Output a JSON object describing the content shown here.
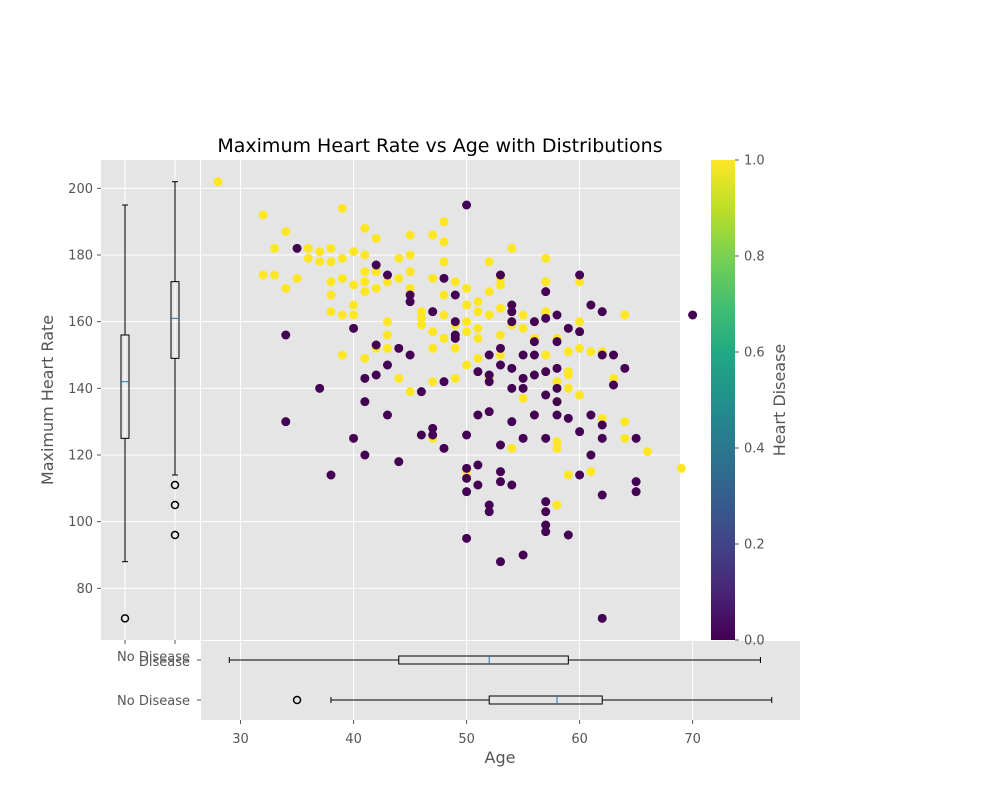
{
  "chart_data": [
    {
      "type": "scatter",
      "title": "Maximum Heart Rate vs Age with Distributions",
      "xlabel": "Age",
      "ylabel": "Maximum Heart Rate",
      "xlim": [
        26.5,
        79.5
      ],
      "ylim": [
        64.5,
        208.5
      ],
      "y_ticks": [
        80,
        100,
        120,
        140,
        160,
        180,
        200
      ],
      "grid": true,
      "colorbar": {
        "label": "Heart Disease",
        "colormap": "viridis",
        "range": [
          0.0,
          1.0
        ],
        "ticks": [
          "0.0",
          "0.2",
          "0.4",
          "0.6",
          "0.8",
          "1.0"
        ]
      },
      "series": [
        {
          "name": "",
          "heart_disease": 1,
          "color": "#fde725",
          "points": [
            [
              28,
              202
            ],
            [
              32,
              192
            ],
            [
              32,
              174
            ],
            [
              33,
              182
            ],
            [
              33,
              174
            ],
            [
              34,
              187
            ],
            [
              34,
              170
            ],
            [
              35,
              173
            ],
            [
              36,
              182
            ],
            [
              36,
              179
            ],
            [
              37,
              178
            ],
            [
              37,
              181
            ],
            [
              38,
              182
            ],
            [
              38,
              178
            ],
            [
              38,
              172
            ],
            [
              38,
              168
            ],
            [
              38,
              163
            ],
            [
              39,
              194
            ],
            [
              39,
              179
            ],
            [
              39,
              173
            ],
            [
              39,
              162
            ],
            [
              39,
              150
            ],
            [
              40,
              181
            ],
            [
              40,
              171
            ],
            [
              40,
              165
            ],
            [
              40,
              162
            ],
            [
              41,
              188
            ],
            [
              41,
              180
            ],
            [
              41,
              175
            ],
            [
              41,
              172
            ],
            [
              41,
              169
            ],
            [
              41,
              149
            ],
            [
              42,
              185
            ],
            [
              42,
              175
            ],
            [
              42,
              170
            ],
            [
              42,
              152
            ],
            [
              43,
              172
            ],
            [
              43,
              160
            ],
            [
              43,
              156
            ],
            [
              43,
              152
            ],
            [
              44,
              179
            ],
            [
              44,
              173
            ],
            [
              44,
              143
            ],
            [
              45,
              186
            ],
            [
              45,
              180
            ],
            [
              45,
              175
            ],
            [
              45,
              170
            ],
            [
              45,
              139
            ],
            [
              46,
              163
            ],
            [
              46,
              161
            ],
            [
              46,
              159
            ],
            [
              47,
              157
            ],
            [
              47,
              152
            ],
            [
              47,
              186
            ],
            [
              47,
              173
            ],
            [
              47,
              125
            ],
            [
              47,
              142
            ],
            [
              48,
              190
            ],
            [
              48,
              184
            ],
            [
              48,
              178
            ],
            [
              48,
              168
            ],
            [
              48,
              162
            ],
            [
              48,
              155
            ],
            [
              49,
              159
            ],
            [
              49,
              152
            ],
            [
              49,
              172
            ],
            [
              49,
              143
            ],
            [
              50,
              170
            ],
            [
              50,
              165
            ],
            [
              50,
              160
            ],
            [
              50,
              157
            ],
            [
              50,
              147
            ],
            [
              50,
              115
            ],
            [
              51,
              166
            ],
            [
              51,
              163
            ],
            [
              51,
              158
            ],
            [
              51,
              155
            ],
            [
              51,
              149
            ],
            [
              51,
              145
            ],
            [
              52,
              169
            ],
            [
              52,
              162
            ],
            [
              52,
              178
            ],
            [
              52,
              143
            ],
            [
              53,
              171
            ],
            [
              53,
              173
            ],
            [
              53,
              164
            ],
            [
              53,
              156
            ],
            [
              53,
              150
            ],
            [
              54,
              182
            ],
            [
              54,
              165
            ],
            [
              54,
              159
            ],
            [
              54,
              122
            ],
            [
              54,
              163
            ],
            [
              55,
              162
            ],
            [
              55,
              158
            ],
            [
              55,
              137
            ],
            [
              56,
              155
            ],
            [
              56,
              160
            ],
            [
              57,
              163
            ],
            [
              57,
              150
            ],
            [
              57,
              145
            ],
            [
              57,
              179
            ],
            [
              57,
              172
            ],
            [
              58,
              105
            ],
            [
              58,
              124
            ],
            [
              58,
              155
            ],
            [
              58,
              122
            ],
            [
              58,
              142
            ],
            [
              58,
              136
            ],
            [
              59,
              151
            ],
            [
              59,
              144
            ],
            [
              59,
              140
            ],
            [
              59,
              145
            ],
            [
              59,
              114
            ],
            [
              60,
              152
            ],
            [
              60,
              138
            ],
            [
              60,
              172
            ],
            [
              60,
              160
            ],
            [
              61,
              115
            ],
            [
              61,
              151
            ],
            [
              62,
              131
            ],
            [
              62,
              151
            ],
            [
              63,
              143
            ],
            [
              64,
              162
            ],
            [
              64,
              130
            ],
            [
              64,
              125
            ],
            [
              66,
              121
            ],
            [
              69,
              116
            ]
          ]
        },
        {
          "name": "",
          "heart_disease": 0,
          "color": "#440154",
          "points": [
            [
              34,
              156
            ],
            [
              34,
              130
            ],
            [
              35,
              182
            ],
            [
              37,
              140
            ],
            [
              38,
              114
            ],
            [
              40,
              158
            ],
            [
              40,
              125
            ],
            [
              41,
              143
            ],
            [
              41,
              136
            ],
            [
              41,
              120
            ],
            [
              42,
              177
            ],
            [
              42,
              153
            ],
            [
              42,
              144
            ],
            [
              43,
              174
            ],
            [
              43,
              132
            ],
            [
              43,
              147
            ],
            [
              44,
              152
            ],
            [
              44,
              118
            ],
            [
              45,
              168
            ],
            [
              45,
              166
            ],
            [
              45,
              150
            ],
            [
              46,
              139
            ],
            [
              46,
              126
            ],
            [
              47,
              163
            ],
            [
              47,
              128
            ],
            [
              47,
              126
            ],
            [
              48,
              173
            ],
            [
              48,
              142
            ],
            [
              48,
              122
            ],
            [
              49,
              168
            ],
            [
              49,
              160
            ],
            [
              49,
              156
            ],
            [
              49,
              155
            ],
            [
              50,
              195
            ],
            [
              50,
              126
            ],
            [
              50,
              116
            ],
            [
              50,
              113
            ],
            [
              50,
              109
            ],
            [
              50,
              95
            ],
            [
              51,
              145
            ],
            [
              51,
              132
            ],
            [
              51,
              117
            ],
            [
              51,
              111
            ],
            [
              52,
              150
            ],
            [
              52,
              144
            ],
            [
              52,
              142
            ],
            [
              52,
              133
            ],
            [
              52,
              105
            ],
            [
              52,
              103
            ],
            [
              53,
              174
            ],
            [
              53,
              152
            ],
            [
              53,
              147
            ],
            [
              53,
              123
            ],
            [
              53,
              115
            ],
            [
              53,
              112
            ],
            [
              53,
              88
            ],
            [
              54,
              165
            ],
            [
              54,
              163
            ],
            [
              54,
              160
            ],
            [
              54,
              146
            ],
            [
              54,
              140
            ],
            [
              54,
              130
            ],
            [
              54,
              111
            ],
            [
              55,
              150
            ],
            [
              55,
              143
            ],
            [
              55,
              140
            ],
            [
              55,
              125
            ],
            [
              55,
              90
            ],
            [
              56,
              160
            ],
            [
              56,
              154
            ],
            [
              56,
              150
            ],
            [
              56,
              144
            ],
            [
              56,
              132
            ],
            [
              57,
              169
            ],
            [
              57,
              161
            ],
            [
              57,
              145
            ],
            [
              57,
              138
            ],
            [
              57,
              125
            ],
            [
              57,
              106
            ],
            [
              57,
              99
            ],
            [
              57,
              97
            ],
            [
              57,
              103
            ],
            [
              58,
              162
            ],
            [
              58,
              154
            ],
            [
              58,
              146
            ],
            [
              58,
              140
            ],
            [
              58,
              136
            ],
            [
              58,
              132
            ],
            [
              59,
              158
            ],
            [
              59,
              131
            ],
            [
              59,
              96
            ],
            [
              60,
              174
            ],
            [
              60,
              157
            ],
            [
              60,
              127
            ],
            [
              60,
              114
            ],
            [
              61,
              165
            ],
            [
              61,
              132
            ],
            [
              61,
              120
            ],
            [
              62,
              163
            ],
            [
              62,
              150
            ],
            [
              62,
              129
            ],
            [
              62,
              125
            ],
            [
              62,
              108
            ],
            [
              62,
              71
            ],
            [
              63,
              150
            ],
            [
              63,
              141
            ],
            [
              64,
              146
            ],
            [
              65,
              125
            ],
            [
              65,
              112
            ],
            [
              65,
              109
            ],
            [
              70,
              162
            ]
          ]
        }
      ]
    },
    {
      "type": "boxplot",
      "orientation": "vertical",
      "axis": "Maximum Heart Rate",
      "boxes": [
        {
          "group": 1,
          "whisker_low": 88,
          "q1": 125,
          "median": 142,
          "q3": 156,
          "whisker_high": 195,
          "outliers": [
            71
          ]
        },
        {
          "group": 2,
          "whisker_low": 114,
          "q1": 149,
          "median": 161,
          "q3": 172,
          "whisker_high": 202,
          "outliers": [
            111,
            105,
            96
          ]
        }
      ]
    },
    {
      "type": "boxplot",
      "orientation": "horizontal",
      "xlabel": "Age",
      "xlim": [
        26.5,
        79.5
      ],
      "x_ticks": [
        30,
        40,
        50,
        60,
        70
      ],
      "y_tick_labels": [
        "No Disease",
        "No Disease",
        "Disease"
      ],
      "boxes": [
        {
          "label": "No Disease",
          "whisker_low": 38,
          "q1": 52,
          "median": 58,
          "q3": 62,
          "whisker_high": 77,
          "outliers": [
            35
          ]
        },
        {
          "label": "Disease",
          "whisker_low": 29,
          "q1": 44,
          "median": 52,
          "q3": 59,
          "whisker_high": 76,
          "outliers": []
        }
      ]
    }
  ]
}
